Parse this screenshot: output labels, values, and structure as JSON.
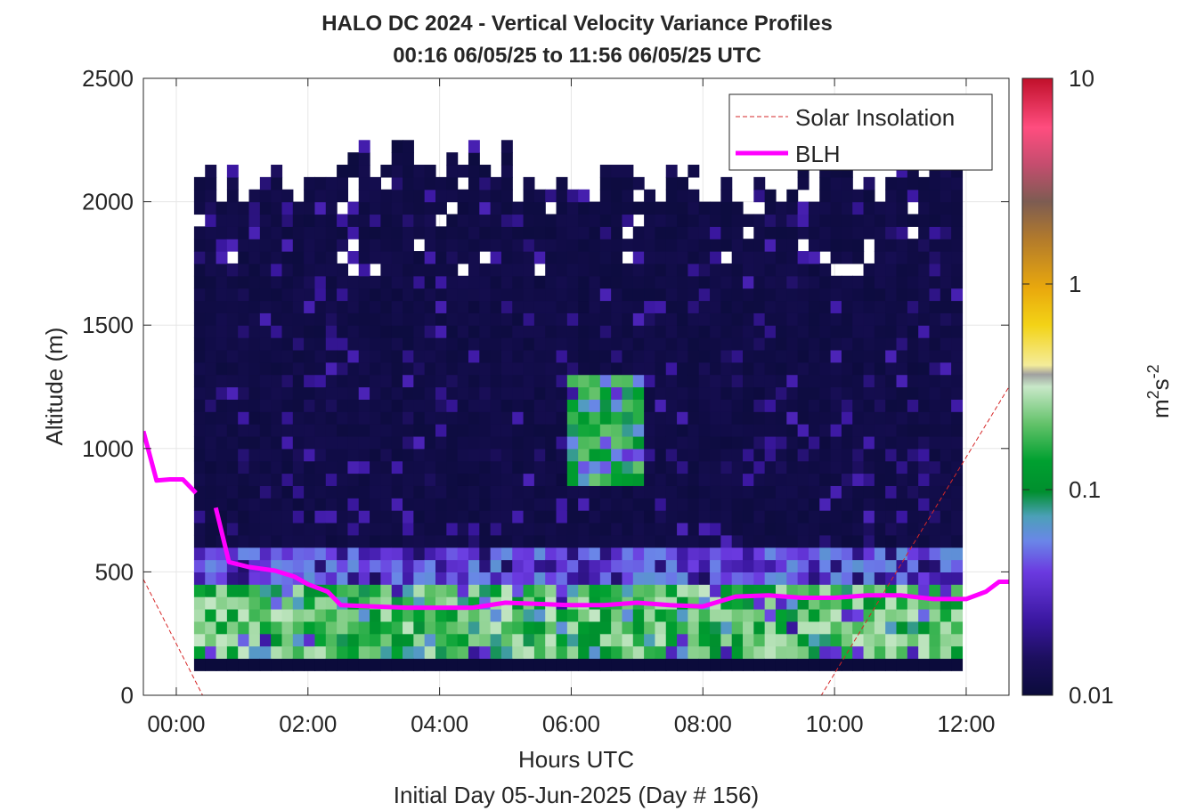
{
  "chart_data": {
    "type": "heatmap",
    "title": "HALO DC 2024 - Vertical Velocity Variance Profiles",
    "subtitle": "00:16 06/05/25 to 11:56 06/05/25  UTC",
    "xlabel": "Hours UTC",
    "xlabel2": "Initial Day 05-Jun-2025 (Day # 156)",
    "ylabel": "Altitude (m)",
    "xlim": [
      -0.5,
      12.65
    ],
    "ylim": [
      0,
      2500
    ],
    "x_ticks": [
      0,
      2,
      4,
      6,
      8,
      10,
      12
    ],
    "x_tick_labels": [
      "00:00",
      "02:00",
      "04:00",
      "06:00",
      "08:00",
      "10:00",
      "12:00"
    ],
    "y_ticks": [
      0,
      500,
      1000,
      1500,
      2000,
      2500
    ],
    "y_tick_labels": [
      "0",
      "500",
      "1000",
      "1500",
      "2000",
      "2500"
    ],
    "grid": true,
    "colorbar": {
      "label": "m^2 s^-2",
      "label_main": "m",
      "label_sup1": "2",
      "label_mid": "s",
      "label_sup2": "-2",
      "scale": "log",
      "range": [
        0.01,
        10
      ],
      "ticks": [
        0.01,
        0.1,
        1,
        10
      ],
      "tick_labels": [
        "0.01",
        "0.1",
        "1",
        "10"
      ]
    },
    "heatmap_summary": {
      "x_range_hours": [
        0.27,
        11.93
      ],
      "altitude_range_m": [
        100,
        2050
      ],
      "bottom_gate_m": 100,
      "near_surface_layer_m": [
        100,
        600
      ],
      "near_surface_variance_range": [
        0.03,
        0.4
      ],
      "upper_layer_variance_typical": 0.012,
      "convective_plume_hours": [
        5.9,
        7.0
      ],
      "convective_plume_altitude_m": [
        800,
        1300
      ],
      "convective_plume_variance_range": [
        0.03,
        0.3
      ]
    },
    "series": [
      {
        "name": "Solar Insolation",
        "style": "dashed",
        "color": "#d62728",
        "x": [
          -0.5,
          0.4,
          9.8,
          12.65
        ],
        "y": [
          470,
          0,
          0,
          1250
        ]
      },
      {
        "name": "BLH",
        "style": "solid",
        "color": "#ff00ff",
        "x": [
          -0.5,
          -0.3,
          -0.1,
          0.1,
          0.3,
          0.45,
          0.6,
          0.8,
          1.1,
          1.5,
          1.8,
          2.0,
          2.3,
          2.5,
          3.0,
          3.5,
          4.0,
          4.5,
          5.0,
          5.5,
          6.0,
          6.5,
          7.0,
          7.5,
          8.0,
          8.5,
          9.0,
          9.5,
          10.0,
          10.5,
          11.0,
          11.5,
          12.0,
          12.3,
          12.5,
          12.65
        ],
        "y": [
          1070,
          870,
          875,
          875,
          820,
          null,
          760,
          540,
          520,
          505,
          480,
          450,
          420,
          365,
          360,
          355,
          355,
          355,
          375,
          370,
          365,
          365,
          375,
          365,
          360,
          400,
          405,
          395,
          395,
          405,
          405,
          390,
          390,
          420,
          460,
          460
        ]
      }
    ],
    "legend": {
      "placement": "top-right",
      "entries": [
        "Solar Insolation",
        "BLH"
      ]
    }
  }
}
